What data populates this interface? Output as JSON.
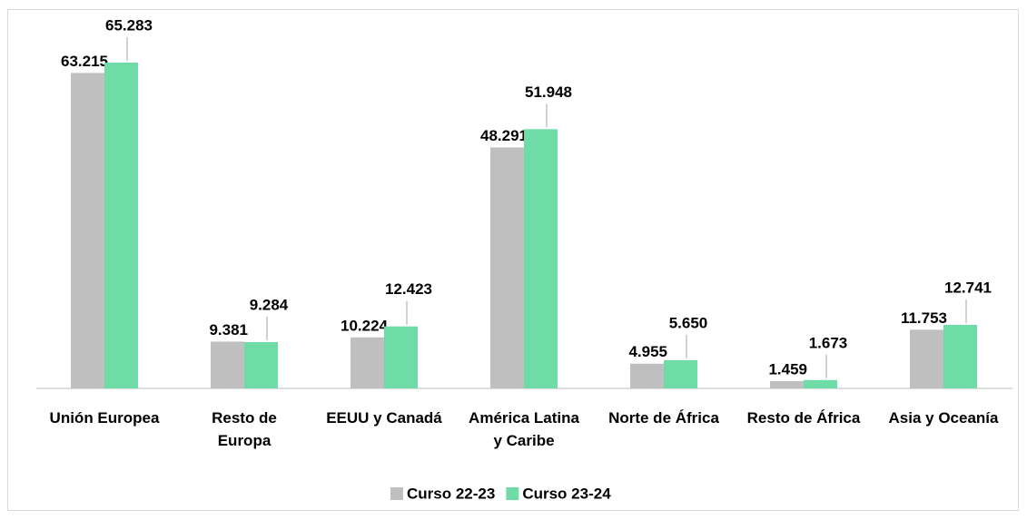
{
  "chart_data": {
    "type": "bar",
    "categories": [
      "Unión Europea",
      "Resto de Europa",
      "EEUU y Canadá",
      "América Latina y Caribe",
      "Norte de África",
      "Resto de África",
      "Asia y Oceanía"
    ],
    "series": [
      {
        "name": "Curso 22-23",
        "color": "#bfbfbf",
        "values": [
          63215,
          9381,
          10224,
          48291,
          4955,
          1459,
          11753
        ],
        "value_labels": [
          "63.215",
          "9.381",
          "10.224",
          "48.291",
          "4.955",
          "1.459",
          "11.753"
        ]
      },
      {
        "name": "Curso 23-24",
        "color": "#6fdba6",
        "values": [
          65283,
          9284,
          12423,
          51948,
          5650,
          1673,
          12741
        ],
        "value_labels": [
          "65.283",
          "9.284",
          "12.423",
          "51.948",
          "5.650",
          "1.673",
          "12.741"
        ]
      }
    ],
    "legend": "bottom"
  }
}
